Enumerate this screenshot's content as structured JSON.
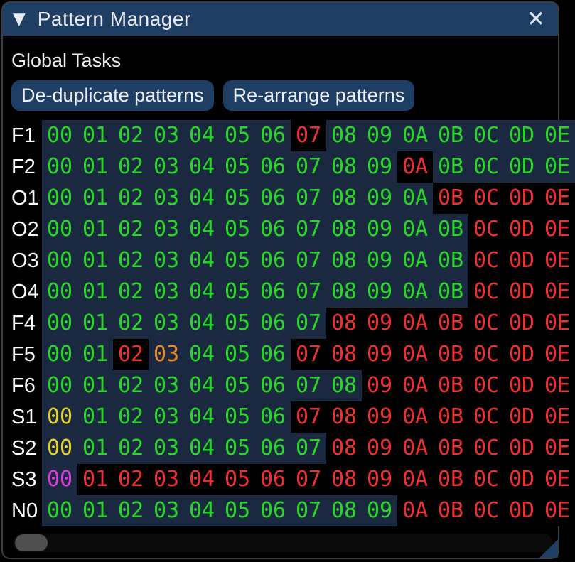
{
  "window": {
    "title": "Pattern Manager",
    "collapse_icon": "▼",
    "close_icon": "✕"
  },
  "global_tasks": {
    "heading": "Global Tasks",
    "buttons": [
      {
        "label": "De-duplicate patterns"
      },
      {
        "label": "Re-arrange patterns"
      }
    ]
  },
  "colors": {
    "titlebar": "#1e3e64",
    "button_bg": "#1e3e64",
    "used_cell_bg": "#1b2940",
    "unused_cell_bg": "#000000",
    "green": "#26d926",
    "red": "#ee3030",
    "orange": "#e88b28",
    "yellow": "#e5d428",
    "magenta": "#dc3ddc"
  },
  "grid": {
    "column_values": [
      "00",
      "01",
      "02",
      "03",
      "04",
      "05",
      "06",
      "07",
      "08",
      "09",
      "0A",
      "0B",
      "0C",
      "0D",
      "0E"
    ],
    "rows": [
      {
        "label": "F1",
        "colors": [
          "green",
          "green",
          "green",
          "green",
          "green",
          "green",
          "green",
          "red",
          "green",
          "green",
          "green",
          "green",
          "green",
          "green",
          "green"
        ]
      },
      {
        "label": "F2",
        "colors": [
          "green",
          "green",
          "green",
          "green",
          "green",
          "green",
          "green",
          "green",
          "green",
          "green",
          "red",
          "green",
          "green",
          "green",
          "green"
        ]
      },
      {
        "label": "O1",
        "colors": [
          "green",
          "green",
          "green",
          "green",
          "green",
          "green",
          "green",
          "green",
          "green",
          "green",
          "green",
          "red",
          "red",
          "red",
          "red"
        ]
      },
      {
        "label": "O2",
        "colors": [
          "green",
          "green",
          "green",
          "green",
          "green",
          "green",
          "green",
          "green",
          "green",
          "green",
          "green",
          "green",
          "red",
          "red",
          "red"
        ]
      },
      {
        "label": "O3",
        "colors": [
          "green",
          "green",
          "green",
          "green",
          "green",
          "green",
          "green",
          "green",
          "green",
          "green",
          "green",
          "green",
          "red",
          "red",
          "red"
        ]
      },
      {
        "label": "O4",
        "colors": [
          "green",
          "green",
          "green",
          "green",
          "green",
          "green",
          "green",
          "green",
          "green",
          "green",
          "green",
          "green",
          "red",
          "red",
          "red"
        ]
      },
      {
        "label": "F4",
        "colors": [
          "green",
          "green",
          "green",
          "green",
          "green",
          "green",
          "green",
          "green",
          "red",
          "red",
          "red",
          "red",
          "red",
          "red",
          "red"
        ]
      },
      {
        "label": "F5",
        "colors": [
          "green",
          "green",
          "red",
          "orange",
          "green",
          "green",
          "green",
          "red",
          "red",
          "red",
          "red",
          "red",
          "red",
          "red",
          "red"
        ]
      },
      {
        "label": "F6",
        "colors": [
          "green",
          "green",
          "green",
          "green",
          "green",
          "green",
          "green",
          "green",
          "green",
          "red",
          "red",
          "red",
          "red",
          "red",
          "red"
        ]
      },
      {
        "label": "S1",
        "colors": [
          "yellow",
          "green",
          "green",
          "green",
          "green",
          "green",
          "green",
          "red",
          "red",
          "red",
          "red",
          "red",
          "red",
          "red",
          "red"
        ]
      },
      {
        "label": "S2",
        "colors": [
          "yellow",
          "green",
          "green",
          "green",
          "green",
          "green",
          "green",
          "green",
          "red",
          "red",
          "red",
          "red",
          "red",
          "red",
          "red"
        ]
      },
      {
        "label": "S3",
        "colors": [
          "magenta",
          "red",
          "red",
          "red",
          "red",
          "red",
          "red",
          "red",
          "red",
          "red",
          "red",
          "red",
          "red",
          "red",
          "red"
        ]
      },
      {
        "label": "N0",
        "colors": [
          "green",
          "green",
          "green",
          "green",
          "green",
          "green",
          "green",
          "green",
          "green",
          "green",
          "red",
          "red",
          "red",
          "red",
          "red"
        ]
      }
    ]
  },
  "scrollbar": {
    "orientation": "horizontal",
    "thumb_position": "left"
  }
}
